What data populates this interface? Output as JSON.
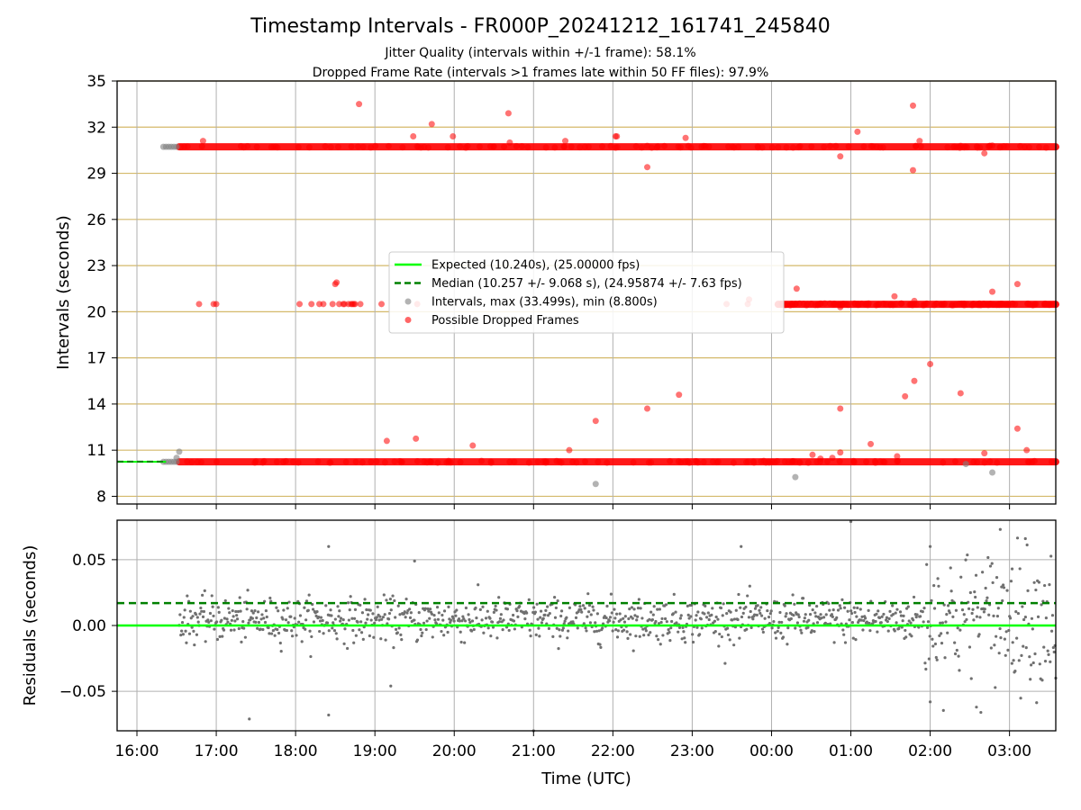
{
  "figure": {
    "title": "Timestamp Intervals - FR000P_20241212_161741_245840",
    "subtitle_1": "Jitter Quality (intervals within +/-1 frame): 58.1%",
    "subtitle_2": "Dropped Frame Rate (intervals >1 frames late within 50 FF files): 97.9%"
  },
  "colors": {
    "expected": "#00ff00",
    "median": "#008000",
    "intervals": "#808080",
    "dropped": "#ff0000",
    "top_grid": "#d4b96a",
    "grid": "#b0b0b0"
  },
  "chart_data": [
    {
      "type": "scatter",
      "ylabel": "Intervals (seconds)",
      "xlabel": "",
      "x_ticks": [
        "16:00",
        "17:00",
        "18:00",
        "19:00",
        "20:00",
        "21:00",
        "22:00",
        "23:00",
        "00:00",
        "01:00",
        "02:00",
        "03:00"
      ],
      "xlim": [
        "2024-12-12 15:45",
        "2024-12-13 03:35"
      ],
      "ylim": [
        7.5,
        35
      ],
      "y_ticks": [
        8,
        11,
        14,
        17,
        20,
        23,
        26,
        29,
        32,
        35
      ],
      "grid": "horizontal lines at y ticks (gold) and vertical lines at x ticks (gray)",
      "legend_position": "center",
      "legend": [
        {
          "label": "Expected (10.240s), (25.00000 fps)",
          "kind": "line-solid"
        },
        {
          "label": "Median (10.257 +/- 9.068 s), (24.95874 +/- 7.63 fps)",
          "kind": "line-dashed"
        },
        {
          "label": "Intervals, max (33.499s), min (8.800s)",
          "kind": "marker-gray"
        },
        {
          "label": "Possible Dropped Frames",
          "kind": "marker-red"
        }
      ],
      "expected_interval": 10.24,
      "median_interval": 10.257,
      "interval_bands": [
        {
          "name": "nominal",
          "y": 10.24,
          "x_start": "16:32",
          "x_end": "03:35"
        },
        {
          "name": "two-frame",
          "y": 20.48,
          "x_start": "00:05",
          "x_end": "03:35"
        },
        {
          "name": "three-frame",
          "y": 30.72,
          "x_start": "16:32",
          "x_end": "03:35"
        }
      ],
      "gray_points": [
        {
          "x": "16:20",
          "y": 10.24
        },
        {
          "x": "16:22",
          "y": 10.24
        },
        {
          "x": "16:24",
          "y": 10.24
        },
        {
          "x": "16:26",
          "y": 10.24
        },
        {
          "x": "16:28",
          "y": 10.24
        },
        {
          "x": "16:30",
          "y": 10.24
        },
        {
          "x": "16:20",
          "y": 30.72
        },
        {
          "x": "16:22",
          "y": 30.72
        },
        {
          "x": "16:24",
          "y": 30.72
        },
        {
          "x": "16:26",
          "y": 30.72
        },
        {
          "x": "16:28",
          "y": 30.72
        },
        {
          "x": "16:30",
          "y": 30.72
        },
        {
          "x": "16:32",
          "y": 10.9
        },
        {
          "x": "16:30",
          "y": 10.5
        },
        {
          "x": "21:47",
          "y": 8.8
        },
        {
          "x": "00:18",
          "y": 9.25
        },
        {
          "x": "02:47",
          "y": 9.55
        },
        {
          "x": "02:27",
          "y": 10.1
        }
      ],
      "dropped_points": [
        {
          "x": "16:47",
          "y": 20.5
        },
        {
          "x": "16:58",
          "y": 20.5
        },
        {
          "x": "17:00",
          "y": 20.5
        },
        {
          "x": "16:50",
          "y": 31.1
        },
        {
          "x": "18:03",
          "y": 20.5
        },
        {
          "x": "18:12",
          "y": 20.5
        },
        {
          "x": "18:18",
          "y": 20.5
        },
        {
          "x": "18:21",
          "y": 20.5
        },
        {
          "x": "18:30",
          "y": 21.8
        },
        {
          "x": "18:31",
          "y": 21.9
        },
        {
          "x": "18:28",
          "y": 20.5
        },
        {
          "x": "18:33",
          "y": 20.5
        },
        {
          "x": "18:37",
          "y": 20.5
        },
        {
          "x": "18:44",
          "y": 20.5
        },
        {
          "x": "18:48",
          "y": 33.5
        },
        {
          "x": "18:43",
          "y": 20.5
        },
        {
          "x": "18:45",
          "y": 20.5
        },
        {
          "x": "18:42",
          "y": 20.5
        },
        {
          "x": "18:40",
          "y": 20.5
        },
        {
          "x": "18:36",
          "y": 20.5
        },
        {
          "x": "18:49",
          "y": 20.5
        },
        {
          "x": "19:05",
          "y": 20.5
        },
        {
          "x": "19:09",
          "y": 11.6
        },
        {
          "x": "19:29",
          "y": 31.4
        },
        {
          "x": "19:31",
          "y": 11.75
        },
        {
          "x": "19:32",
          "y": 20.5
        },
        {
          "x": "19:43",
          "y": 32.2
        },
        {
          "x": "19:59",
          "y": 31.4
        },
        {
          "x": "20:14",
          "y": 11.3
        },
        {
          "x": "20:41",
          "y": 32.9
        },
        {
          "x": "20:42",
          "y": 31.0
        },
        {
          "x": "21:24",
          "y": 31.1
        },
        {
          "x": "21:27",
          "y": 11.0
        },
        {
          "x": "21:47",
          "y": 12.9
        },
        {
          "x": "22:02",
          "y": 31.4
        },
        {
          "x": "22:03",
          "y": 31.4
        },
        {
          "x": "22:26",
          "y": 29.4
        },
        {
          "x": "22:26",
          "y": 13.7
        },
        {
          "x": "22:50",
          "y": 14.6
        },
        {
          "x": "22:55",
          "y": 31.3
        },
        {
          "x": "23:26",
          "y": 20.5
        },
        {
          "x": "23:42",
          "y": 20.5
        },
        {
          "x": "23:43",
          "y": 20.8
        },
        {
          "x": "00:08",
          "y": 20.5
        },
        {
          "x": "00:19",
          "y": 21.5
        },
        {
          "x": "00:31",
          "y": 10.7
        },
        {
          "x": "00:37",
          "y": 10.45
        },
        {
          "x": "00:46",
          "y": 10.5
        },
        {
          "x": "00:52",
          "y": 13.7
        },
        {
          "x": "00:52",
          "y": 10.85
        },
        {
          "x": "00:52",
          "y": 30.1
        },
        {
          "x": "00:52",
          "y": 20.3
        },
        {
          "x": "01:05",
          "y": 31.7
        },
        {
          "x": "01:15",
          "y": 11.4
        },
        {
          "x": "01:33",
          "y": 21.0
        },
        {
          "x": "01:35",
          "y": 10.6
        },
        {
          "x": "01:41",
          "y": 14.5
        },
        {
          "x": "01:47",
          "y": 33.4
        },
        {
          "x": "01:47",
          "y": 29.2
        },
        {
          "x": "01:48",
          "y": 15.5
        },
        {
          "x": "01:48",
          "y": 20.7
        },
        {
          "x": "01:52",
          "y": 31.1
        },
        {
          "x": "02:00",
          "y": 16.6
        },
        {
          "x": "02:23",
          "y": 14.7
        },
        {
          "x": "02:41",
          "y": 10.8
        },
        {
          "x": "02:41",
          "y": 30.3
        },
        {
          "x": "02:47",
          "y": 21.3
        },
        {
          "x": "02:47",
          "y": 30.8
        },
        {
          "x": "03:06",
          "y": 21.8
        },
        {
          "x": "03:06",
          "y": 12.4
        },
        {
          "x": "03:13",
          "y": 11.0
        },
        {
          "x": "03:14",
          "y": 10.24
        },
        {
          "x": "02:59",
          "y": 20.5
        },
        {
          "x": "03:20",
          "y": 20.5
        },
        {
          "x": "03:30",
          "y": 20.5
        }
      ]
    },
    {
      "type": "scatter",
      "ylabel": "Residuals (seconds)",
      "xlabel": "Time (UTC)",
      "x_ticks": [
        "16:00",
        "17:00",
        "18:00",
        "19:00",
        "20:00",
        "21:00",
        "22:00",
        "23:00",
        "00:00",
        "01:00",
        "02:00",
        "03:00"
      ],
      "xlim": [
        "2024-12-12 15:45",
        "2024-12-13 03:35"
      ],
      "ylim": [
        -0.08,
        0.08
      ],
      "y_ticks": [
        {
          "value": 0.05,
          "label": "0.05"
        },
        {
          "value": 0.0,
          "label": "0.00"
        },
        {
          "value": -0.05,
          "label": "−0.05"
        }
      ],
      "grid": "on",
      "expected_residual": 0.0,
      "median_residual": 0.017,
      "residual_spread": {
        "typical": [
          -0.015,
          0.03
        ],
        "late_segment_from": "01:55",
        "late_segment_range": [
          -0.07,
          0.08
        ]
      },
      "notable_points": [
        {
          "x": "17:25",
          "y": -0.071
        },
        {
          "x": "18:25",
          "y": -0.068
        },
        {
          "x": "18:25",
          "y": 0.06
        },
        {
          "x": "19:12",
          "y": -0.046
        },
        {
          "x": "19:30",
          "y": 0.049
        },
        {
          "x": "21:00",
          "y": -0.08
        },
        {
          "x": "23:37",
          "y": 0.06
        },
        {
          "x": "01:00",
          "y": 0.079
        },
        {
          "x": "02:00",
          "y": 0.06
        },
        {
          "x": "02:53",
          "y": 0.073
        },
        {
          "x": "03:02",
          "y": 0.043
        },
        {
          "x": "03:12",
          "y": 0.066
        },
        {
          "x": "02:35",
          "y": -0.062
        },
        {
          "x": "03:35",
          "y": -0.04
        },
        {
          "x": "02:00",
          "y": -0.058
        }
      ]
    }
  ]
}
